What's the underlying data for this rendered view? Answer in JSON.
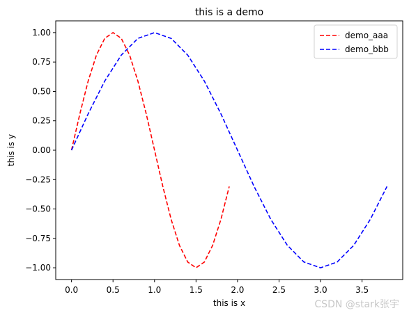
{
  "chart_data": {
    "type": "line",
    "title": "this is a demo",
    "xlabel": "this is x",
    "ylabel": "this is y",
    "xlim": [
      -0.19,
      3.99
    ],
    "ylim": [
      -1.1,
      1.1
    ],
    "xticks": [
      0.0,
      0.5,
      1.0,
      1.5,
      2.0,
      2.5,
      3.0,
      3.5
    ],
    "xtick_labels": [
      "0.0",
      "0.5",
      "1.0",
      "1.5",
      "2.0",
      "2.5",
      "3.0",
      "3.5"
    ],
    "yticks": [
      1.0,
      0.75,
      0.5,
      0.25,
      0.0,
      -0.25,
      -0.5,
      -0.75,
      -1.0
    ],
    "ytick_labels": [
      "1.00",
      "0.75",
      "0.50",
      "0.25",
      "0.00",
      "−0.25",
      "−0.50",
      "−0.75",
      "−1.00"
    ],
    "grid": false,
    "legend_position": "top-right",
    "series": [
      {
        "name": "demo_aaa",
        "color": "#ff0000",
        "line_style": "dashed",
        "x": [
          0.0,
          0.1,
          0.2,
          0.3,
          0.4,
          0.5,
          0.6,
          0.7,
          0.8,
          0.9,
          1.0,
          1.1,
          1.2,
          1.3,
          1.4,
          1.5,
          1.6,
          1.7,
          1.8,
          1.9
        ],
        "y": [
          0.0,
          0.309,
          0.588,
          0.809,
          0.951,
          1.0,
          0.951,
          0.809,
          0.588,
          0.309,
          0.0,
          -0.309,
          -0.588,
          -0.809,
          -0.951,
          -1.0,
          -0.951,
          -0.809,
          -0.588,
          -0.309
        ]
      },
      {
        "name": "demo_bbb",
        "color": "#0000ff",
        "line_style": "dashed",
        "x": [
          0.0,
          0.2,
          0.4,
          0.6,
          0.8,
          1.0,
          1.2,
          1.4,
          1.6,
          1.8,
          2.0,
          2.2,
          2.4,
          2.6,
          2.8,
          3.0,
          3.2,
          3.4,
          3.6,
          3.8
        ],
        "y": [
          0.0,
          0.309,
          0.588,
          0.809,
          0.951,
          1.0,
          0.951,
          0.809,
          0.588,
          0.309,
          0.0,
          -0.309,
          -0.588,
          -0.809,
          -0.951,
          -1.0,
          -0.951,
          -0.809,
          -0.588,
          -0.309
        ]
      }
    ]
  },
  "watermark": "CSDN @stark张宇"
}
